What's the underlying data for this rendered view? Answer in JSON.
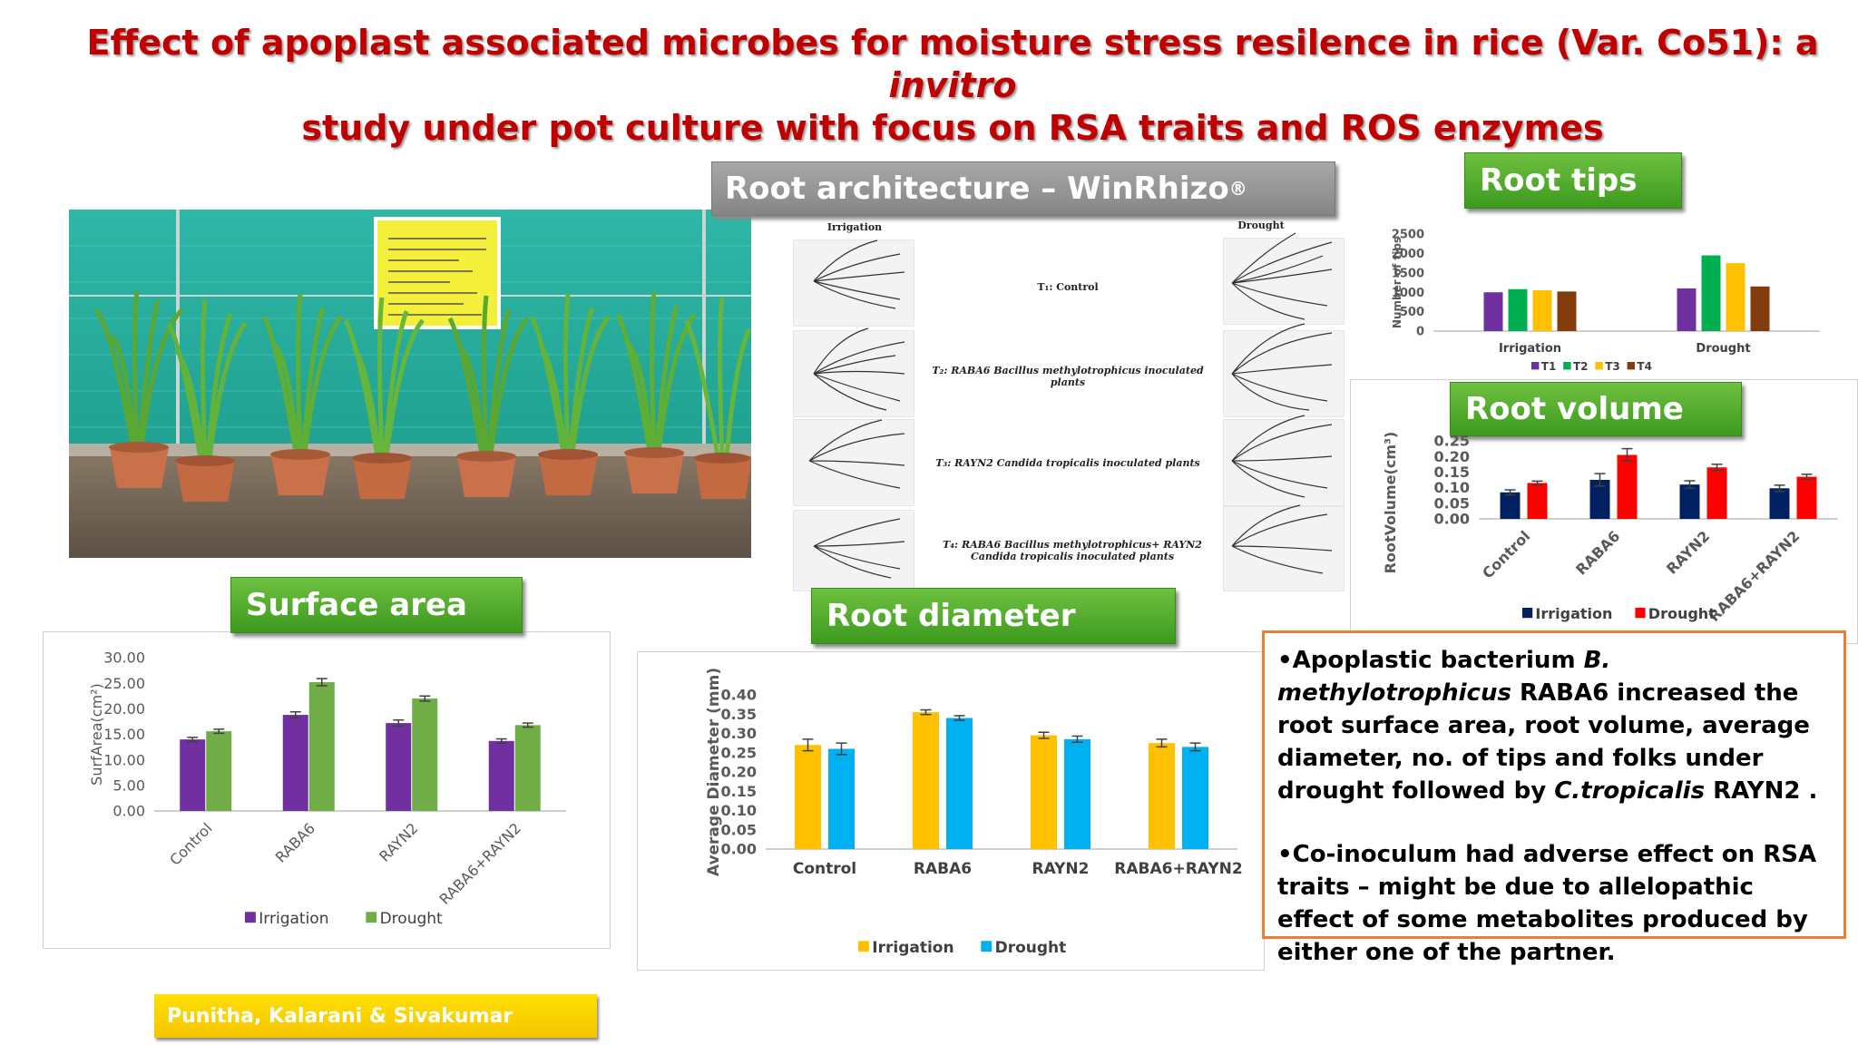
{
  "title": {
    "line1_pre": "Effect of apoplast associated microbes  for  moisture stress resilence  in rice (Var. Co51): a ",
    "line1_italic": "invitro",
    "line2": "study under pot culture with focus on RSA traits and ROS enzymes"
  },
  "labels": {
    "root_architecture": "Root architecture – WinRhizo",
    "root_architecture_sup": "®",
    "root_tips": "Root tips",
    "root_volume": "Root volume",
    "surface_area": "Surface area",
    "root_diameter": "Root diameter"
  },
  "scan": {
    "col_irrigation": "Irrigation",
    "col_drought": "Drought",
    "rows": [
      "T₁: Control",
      "T₂: RABA6 Bacillus  methylotrophicus inoculated plants",
      "T₃: RAYN2 Candida tropicalis inoculated plants",
      "T₄: RABA6 Bacillus  methylotrophicus+ RAYN2 Candida tropicalis inoculated plants"
    ]
  },
  "summary": {
    "p1": "•Apoplastic bacterium B. methylotrophicus RABA6 increased the root surface area, root volume, average diameter, no. of tips and folks under drought followed by C.tropicalis RAYN2 .",
    "p1_parts": [
      "•Apoplastic bacterium ",
      "B. methylotrophicus",
      " RABA6 increased the root surface area, root volume, average diameter, no. of tips and folks under drought followed by ",
      "C.tropicalis",
      " RAYN2 ."
    ],
    "p2": "•Co-inoculum had adverse effect on RSA traits – might be due to allelopathic effect of some metabolites produced by either one of the partner."
  },
  "authors": "Punitha, Kalarani & Sivakumar",
  "colors": {
    "title_red": "#c00000",
    "label_green": "#4ea72e",
    "irrigation_purple": "#7030a0",
    "drought_green": "#70ad47",
    "irrigation_gold": "#ffc000",
    "drought_blue": "#00b0f0",
    "irrigation_navy": "#002060",
    "drought_red": "#ff0000",
    "textbox_border": "#ed7d31"
  },
  "chart_data": [
    {
      "id": "root_tips",
      "type": "bar",
      "categories": [
        "Irrigation",
        "Drought"
      ],
      "ylabel": "Number of tips",
      "ylim": [
        0,
        2500
      ],
      "yticks": [
        "0",
        "500",
        "1000",
        "1500",
        "2000",
        "2500"
      ],
      "colors": [
        "#7030a0",
        "#00b050",
        "#ffc000",
        "#843c0c"
      ],
      "series": [
        {
          "name": "T1",
          "values": [
            1000,
            1100
          ]
        },
        {
          "name": "T2",
          "values": [
            1080,
            1950
          ]
        },
        {
          "name": "T3",
          "values": [
            1050,
            1750
          ]
        },
        {
          "name": "T4",
          "values": [
            1020,
            1150
          ]
        }
      ],
      "legend": "bottom"
    },
    {
      "id": "root_volume",
      "type": "bar",
      "categories": [
        "Control",
        "RABA6",
        "RAYN2",
        "RABA6+RAYN2"
      ],
      "ylabel": "RootVolume(cm³)",
      "ylim": [
        0,
        0.25
      ],
      "yticks": [
        "0.00",
        "0.05",
        "0.10",
        "0.15",
        "0.20",
        "0.25"
      ],
      "colors": [
        "#002060",
        "#ff0000"
      ],
      "series": [
        {
          "name": "Irrigation",
          "values": [
            0.085,
            0.125,
            0.11,
            0.098
          ],
          "err": [
            0.008,
            0.02,
            0.012,
            0.01
          ]
        },
        {
          "name": "Drought",
          "values": [
            0.115,
            0.205,
            0.165,
            0.135
          ],
          "err": [
            0.006,
            0.02,
            0.01,
            0.008
          ]
        }
      ],
      "legend": "bottom"
    },
    {
      "id": "surface_area",
      "type": "bar",
      "categories": [
        "Control",
        "RABA6",
        "RAYN2",
        "RABA6+RAYN2"
      ],
      "ylabel": "SurfArea(cm²)",
      "ylim": [
        0,
        30
      ],
      "yticks": [
        "0.00",
        "5.00",
        "10.00",
        "15.00",
        "20.00",
        "25.00",
        "30.00"
      ],
      "colors": [
        "#7030a0",
        "#70ad47"
      ],
      "series": [
        {
          "name": "Irrigation",
          "values": [
            14.0,
            18.8,
            17.2,
            13.7
          ],
          "err": [
            0.4,
            0.6,
            0.6,
            0.4
          ]
        },
        {
          "name": "Drought",
          "values": [
            15.6,
            25.2,
            22.0,
            16.8
          ],
          "err": [
            0.4,
            0.7,
            0.5,
            0.4
          ]
        }
      ],
      "legend": "bottom"
    },
    {
      "id": "root_diameter",
      "type": "bar",
      "categories": [
        "Control",
        "RABA6",
        "RAYN2",
        "RABA6+RAYN2"
      ],
      "ylabel": "Average Diameter (mm)",
      "ylim": [
        0,
        0.4
      ],
      "yticks": [
        "0.00",
        "0.05",
        "0.10",
        "0.15",
        "0.20",
        "0.25",
        "0.30",
        "0.35",
        "0.40"
      ],
      "colors": [
        "#ffc000",
        "#00b0f0"
      ],
      "series": [
        {
          "name": "Irrigation",
          "values": [
            0.27,
            0.355,
            0.295,
            0.275
          ],
          "err": [
            0.015,
            0.006,
            0.008,
            0.01
          ]
        },
        {
          "name": "Drought",
          "values": [
            0.26,
            0.34,
            0.285,
            0.265
          ],
          "err": [
            0.015,
            0.006,
            0.008,
            0.01
          ]
        }
      ],
      "legend": "bottom"
    }
  ]
}
